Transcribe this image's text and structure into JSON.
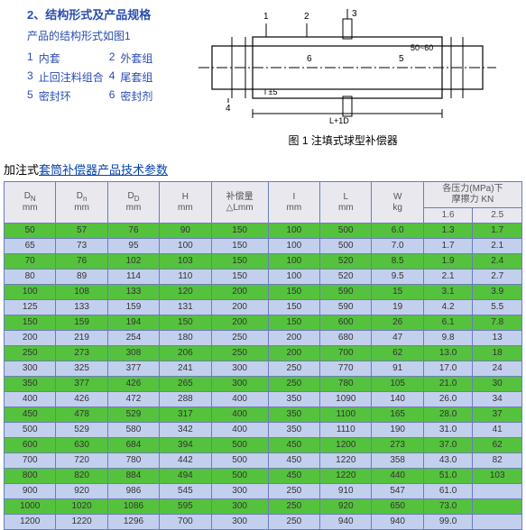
{
  "section1": {
    "heading": "2、结构形式及产品规格",
    "intro": "产品的结构形式如图1",
    "parts": [
      [
        "1",
        "内套"
      ],
      [
        "2",
        "外套组"
      ],
      [
        "3",
        "止回注料组合"
      ],
      [
        "4",
        "尾套组"
      ],
      [
        "5",
        "密封环"
      ],
      [
        "6",
        "密封剂"
      ]
    ]
  },
  "diagram": {
    "caption": "图 1  注填式球型补偿器",
    "l1": "1",
    "l2": "2",
    "l3": "3",
    "l4": "4",
    "l5": "6",
    "l6": "5",
    "dim1": "50~60",
    "dim2": "L+1D",
    "dim3": "l ±5"
  },
  "subtitle": {
    "pre": "加注式",
    "link": "套筒补偿器产品技术参数"
  },
  "headers": {
    "h1": "D<sub>N</sub><br>mm",
    "h2": "D<sub>n</sub><br>mm",
    "h3": "D<sub>D</sub><br>mm",
    "h4": "H<br>mm",
    "h5": "补偿量<br>△Lmm",
    "h6": "I<br>mm",
    "h7": "L<br>mm",
    "h8": "W<br>kg",
    "h9": "各压力(MPa)下<br>摩擦力  KN",
    "h9a": "1.6",
    "h9b": "2.5"
  },
  "rows": [
    [
      "50",
      "57",
      "76",
      "90",
      "150",
      "100",
      "500",
      "6.0",
      "1.3",
      "1.7"
    ],
    [
      "65",
      "73",
      "95",
      "100",
      "150",
      "100",
      "500",
      "7.0",
      "1.7",
      "2.1"
    ],
    [
      "70",
      "76",
      "102",
      "103",
      "150",
      "100",
      "520",
      "8.5",
      "1.9",
      "2.4"
    ],
    [
      "80",
      "89",
      "114",
      "110",
      "150",
      "100",
      "520",
      "9.5",
      "2.1",
      "2.7"
    ],
    [
      "100",
      "108",
      "133",
      "120",
      "200",
      "150",
      "590",
      "15",
      "3.1",
      "3.9"
    ],
    [
      "125",
      "133",
      "159",
      "131",
      "200",
      "150",
      "590",
      "19",
      "4.2",
      "5.5"
    ],
    [
      "150",
      "159",
      "194",
      "150",
      "200",
      "150",
      "600",
      "26",
      "6.1",
      "7.8"
    ],
    [
      "200",
      "219",
      "254",
      "180",
      "250",
      "200",
      "680",
      "47",
      "9.8",
      "13"
    ],
    [
      "250",
      "273",
      "308",
      "206",
      "250",
      "200",
      "700",
      "62",
      "13.0",
      "18"
    ],
    [
      "300",
      "325",
      "377",
      "241",
      "300",
      "250",
      "770",
      "91",
      "17.0",
      "24"
    ],
    [
      "350",
      "377",
      "426",
      "265",
      "300",
      "250",
      "780",
      "105",
      "21.0",
      "30"
    ],
    [
      "400",
      "426",
      "472",
      "288",
      "400",
      "350",
      "1090",
      "140",
      "26.0",
      "34"
    ],
    [
      "450",
      "478",
      "529",
      "317",
      "400",
      "350",
      "1100",
      "165",
      "28.0",
      "37"
    ],
    [
      "500",
      "529",
      "580",
      "342",
      "400",
      "350",
      "1110",
      "190",
      "31.0",
      "41"
    ],
    [
      "600",
      "630",
      "684",
      "394",
      "500",
      "450",
      "1200",
      "273",
      "37.0",
      "62"
    ],
    [
      "700",
      "720",
      "780",
      "442",
      "500",
      "450",
      "1220",
      "358",
      "43.0",
      "82"
    ],
    [
      "800",
      "820",
      "884",
      "494",
      "500",
      "450",
      "1220",
      "440",
      "51.0",
      "103"
    ],
    [
      "900",
      "920",
      "986",
      "545",
      "300",
      "250",
      "910",
      "547",
      "61.0",
      ""
    ],
    [
      "1000",
      "1020",
      "1086",
      "595",
      "300",
      "250",
      "920",
      "650",
      "73.0",
      ""
    ],
    [
      "1200",
      "1220",
      "1296",
      "700",
      "300",
      "250",
      "940",
      "940",
      "99.0",
      ""
    ]
  ]
}
